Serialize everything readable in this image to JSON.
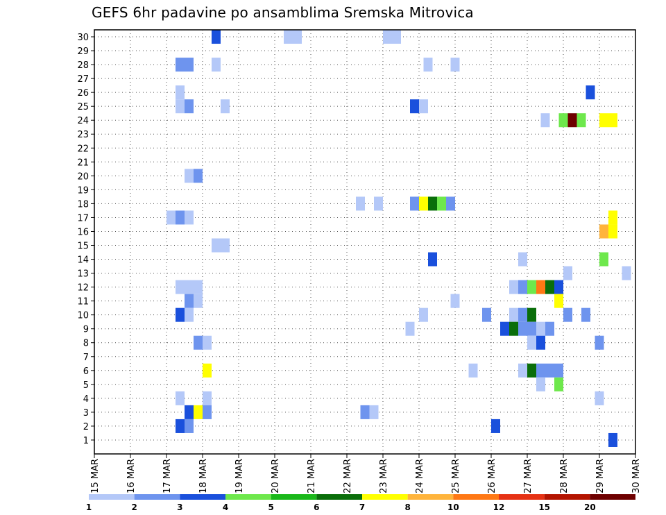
{
  "chart_data": {
    "type": "heatmap",
    "title": "GEFS 6hr padavine po ansamblima Sremska Mitrovica",
    "xlabel": "",
    "ylabel": "",
    "x_ticks": [
      "15 MAR",
      "16 MAR",
      "17 MAR",
      "18 MAR",
      "19 MAR",
      "20 MAR",
      "21 MAR",
      "22 MAR",
      "23 MAR",
      "24 MAR",
      "25 MAR",
      "26 MAR",
      "27 MAR",
      "28 MAR",
      "29 MAR",
      "30 MAR"
    ],
    "y_ticks": [
      "1",
      "2",
      "3",
      "4",
      "5",
      "6",
      "7",
      "8",
      "9",
      "10",
      "11",
      "12",
      "13",
      "14",
      "15",
      "16",
      "17",
      "18",
      "19",
      "20",
      "21",
      "22",
      "23",
      "24",
      "25",
      "26",
      "27",
      "28",
      "29",
      "30"
    ],
    "time_axis": {
      "start_day": 15,
      "end_day": 30,
      "steps_per_day": 4
    },
    "legend": {
      "colors": [
        "#b4c8f8",
        "#6e94ee",
        "#1a50dc",
        "#6ee84c",
        "#1ab81a",
        "#0a6e0a",
        "#ffff00",
        "#ffb43c",
        "#ff7814",
        "#e63214",
        "#b41400",
        "#6e0000"
      ],
      "labels": [
        "1",
        "2",
        "3",
        "4",
        "5",
        "6",
        "7",
        "8",
        "10",
        "12",
        "15",
        "20"
      ]
    },
    "cells": [
      [
        13.0,
        3,
        30
      ],
      [
        21.0,
        1,
        30
      ],
      [
        22.0,
        1,
        30
      ],
      [
        32.0,
        1,
        30
      ],
      [
        33.0,
        1,
        30
      ],
      [
        9.0,
        2,
        28
      ],
      [
        10.0,
        2,
        28
      ],
      [
        13.0,
        1,
        28
      ],
      [
        36.5,
        1,
        28
      ],
      [
        39.5,
        1,
        28
      ],
      [
        9.0,
        1,
        26
      ],
      [
        54.5,
        3,
        26
      ],
      [
        9.0,
        1,
        25
      ],
      [
        10.0,
        2,
        25
      ],
      [
        14.0,
        1,
        25
      ],
      [
        35.0,
        3,
        25
      ],
      [
        36.0,
        1,
        25
      ],
      [
        49.5,
        1,
        24
      ],
      [
        51.5,
        4,
        24
      ],
      [
        52.5,
        12,
        24
      ],
      [
        53.5,
        4,
        24
      ],
      [
        56.0,
        7,
        24
      ],
      [
        57.0,
        7,
        24
      ],
      [
        10.0,
        1,
        20
      ],
      [
        11.0,
        2,
        20
      ],
      [
        29.0,
        1,
        18
      ],
      [
        31.0,
        1,
        18
      ],
      [
        35.0,
        2,
        18
      ],
      [
        36.0,
        7,
        18
      ],
      [
        37.0,
        6,
        18
      ],
      [
        38.0,
        4,
        18
      ],
      [
        39.0,
        2,
        18
      ],
      [
        8.0,
        1,
        17
      ],
      [
        9.0,
        2,
        17
      ],
      [
        10.0,
        1,
        17
      ],
      [
        57.0,
        7,
        17
      ],
      [
        56.0,
        8,
        16
      ],
      [
        57.0,
        7,
        16
      ],
      [
        13.0,
        1,
        15
      ],
      [
        14.0,
        1,
        15
      ],
      [
        37.0,
        3,
        14
      ],
      [
        47.0,
        1,
        14
      ],
      [
        56.0,
        4,
        14
      ],
      [
        52.0,
        1,
        13
      ],
      [
        58.5,
        1,
        13
      ],
      [
        9.0,
        1,
        12
      ],
      [
        10.0,
        1,
        12
      ],
      [
        11.0,
        1,
        12
      ],
      [
        46.0,
        1,
        12
      ],
      [
        47.0,
        2,
        12
      ],
      [
        48.0,
        4,
        12
      ],
      [
        49.0,
        9,
        12
      ],
      [
        50.0,
        6,
        12
      ],
      [
        51.0,
        3,
        12
      ],
      [
        10.0,
        2,
        11
      ],
      [
        11.0,
        1,
        11
      ],
      [
        39.5,
        1,
        11
      ],
      [
        51.0,
        7,
        11
      ],
      [
        9.0,
        3,
        10
      ],
      [
        10.0,
        1,
        10
      ],
      [
        36.0,
        1,
        10
      ],
      [
        43.0,
        2,
        10
      ],
      [
        46.0,
        1,
        10
      ],
      [
        47.0,
        2,
        10
      ],
      [
        48.0,
        6,
        10
      ],
      [
        52.0,
        2,
        10
      ],
      [
        54.0,
        2,
        10
      ],
      [
        34.5,
        1,
        9
      ],
      [
        45.0,
        3,
        9
      ],
      [
        46.0,
        6,
        9
      ],
      [
        47.0,
        2,
        9
      ],
      [
        48.0,
        2,
        9
      ],
      [
        49.0,
        1,
        9
      ],
      [
        50.0,
        2,
        9
      ],
      [
        11.0,
        2,
        8
      ],
      [
        12.0,
        1,
        8
      ],
      [
        48.0,
        1,
        8
      ],
      [
        49.0,
        3,
        8
      ],
      [
        55.5,
        2,
        8
      ],
      [
        12.0,
        7,
        6
      ],
      [
        41.5,
        1,
        6
      ],
      [
        47.0,
        1,
        6
      ],
      [
        48.0,
        6,
        6
      ],
      [
        49.0,
        2,
        6
      ],
      [
        50.0,
        2,
        6
      ],
      [
        51.0,
        2,
        6
      ],
      [
        49.0,
        1,
        5
      ],
      [
        51.0,
        4,
        5
      ],
      [
        9.0,
        1,
        4
      ],
      [
        12.0,
        1,
        4
      ],
      [
        55.5,
        1,
        4
      ],
      [
        10.0,
        3,
        3
      ],
      [
        11.0,
        7,
        3
      ],
      [
        12.0,
        2,
        3
      ],
      [
        29.5,
        2,
        3
      ],
      [
        30.5,
        1,
        3
      ],
      [
        9.0,
        3,
        2
      ],
      [
        10.0,
        2,
        2
      ],
      [
        44.0,
        3,
        2
      ],
      [
        57.0,
        3,
        1
      ]
    ]
  }
}
